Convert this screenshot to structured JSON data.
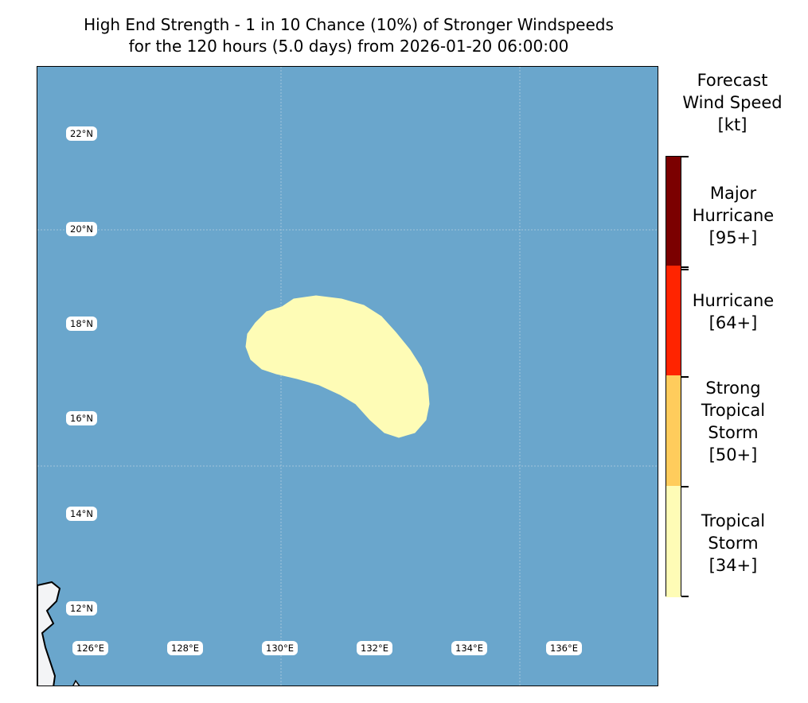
{
  "title": {
    "line1": "High End Strength - 1 in 10 Chance (10%) of Stronger Windspeeds",
    "line2": "for the 120 hours (5.0 days) from 2026-01-20 06:00:00"
  },
  "map": {
    "ocean_color": "#6aa6cc",
    "land_color": "#f3f4f6",
    "forecast_area_color": "#fefcb6",
    "forecast_area_category": "Tropical Storm [34+]",
    "lat_labels": [
      "22°N",
      "20°N",
      "18°N",
      "16°N",
      "14°N",
      "12°N"
    ],
    "lon_labels": [
      "126°E",
      "128°E",
      "130°E",
      "132°E",
      "134°E",
      "136°E"
    ]
  },
  "colorbar": {
    "title": [
      "Forecast",
      "Wind Speed",
      "[kt]"
    ],
    "categories": [
      {
        "lines": [
          "Major",
          "Hurricane",
          "[95+]"
        ],
        "color": "#7b0000"
      },
      {
        "lines": [
          "Hurricane",
          "[64+]"
        ],
        "color": "#ff2400"
      },
      {
        "lines": [
          "Strong",
          "Tropical",
          "Storm",
          "[50+]"
        ],
        "color": "#ffcc5c"
      },
      {
        "lines": [
          "Tropical",
          "Storm",
          "[34+]"
        ],
        "color": "#fefcb6"
      }
    ]
  }
}
